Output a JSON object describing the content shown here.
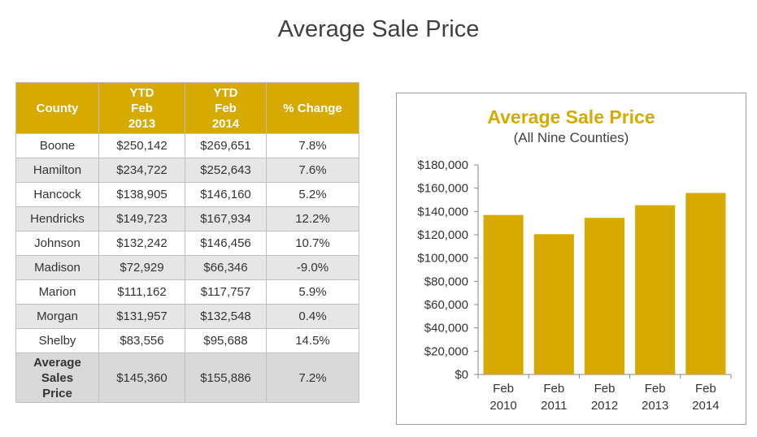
{
  "title": "Average Sale Price",
  "table": {
    "headers": [
      [
        "County"
      ],
      [
        "YTD",
        "Feb",
        "2013"
      ],
      [
        "YTD",
        "Feb",
        "2014"
      ],
      [
        "% Change"
      ]
    ],
    "rows": [
      [
        "Boone",
        "$250,142",
        "$269,651",
        "7.8%"
      ],
      [
        "Hamilton",
        "$234,722",
        "$252,643",
        "7.6%"
      ],
      [
        "Hancock",
        "$138,905",
        "$146,160",
        "5.2%"
      ],
      [
        "Hendricks",
        "$149,723",
        "$167,934",
        "12.2%"
      ],
      [
        "Johnson",
        "$132,242",
        "$146,456",
        "10.7%"
      ],
      [
        "Madison",
        "$72,929",
        "$66,346",
        "-9.0%"
      ],
      [
        "Marion",
        "$111,162",
        "$117,757",
        "5.9%"
      ],
      [
        "Morgan",
        "$131,957",
        "$132,548",
        "0.4%"
      ],
      [
        "Shelby",
        "$83,556",
        "$95,688",
        "14.5%"
      ]
    ],
    "total": {
      "label_lines": [
        "Average",
        "Sales",
        "Price"
      ],
      "values": [
        "$145,360",
        "$155,886",
        "7.2%"
      ]
    }
  },
  "colors": {
    "accent": "#d6aa00",
    "header_text": "#ffffff",
    "alt_row": "#e6e6e6",
    "total_row": "#d9d9d9",
    "bar": "#d6aa00"
  },
  "chart_data": {
    "type": "bar",
    "title": "Average Sale Price",
    "subtitle": "(All Nine Counties)",
    "categories": [
      [
        "Feb",
        "2010"
      ],
      [
        "Feb",
        "2011"
      ],
      [
        "Feb",
        "2012"
      ],
      [
        "Feb",
        "2013"
      ],
      [
        "Feb",
        "2014"
      ]
    ],
    "values": [
      137000,
      120500,
      134500,
      145360,
      155886
    ],
    "ylim": [
      0,
      180000
    ],
    "yticks": [
      "$0",
      "$20,000",
      "$40,000",
      "$60,000",
      "$80,000",
      "$100,000",
      "$120,000",
      "$140,000",
      "$160,000",
      "$180,000"
    ],
    "ytick_values": [
      0,
      20000,
      40000,
      60000,
      80000,
      100000,
      120000,
      140000,
      160000,
      180000
    ],
    "grid": false,
    "legend": "none"
  }
}
